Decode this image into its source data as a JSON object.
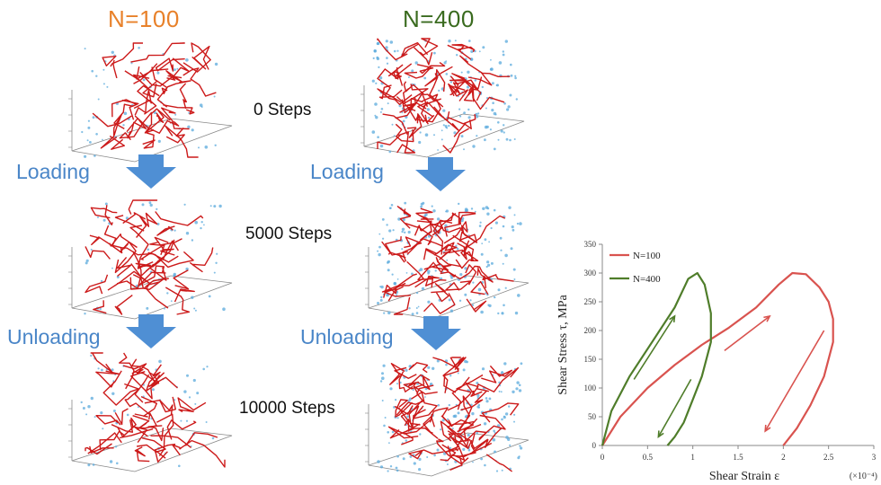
{
  "columns": [
    {
      "title": "N=100",
      "color": "#e8812a"
    },
    {
      "title": "N=400",
      "color": "#3a6b1f"
    }
  ],
  "steps": [
    "0 Steps",
    "5000 Steps",
    "10000 Steps"
  ],
  "phases": {
    "loading": "Loading",
    "unloading": "Unloading"
  },
  "colors": {
    "dislocation": "#cc1a1a",
    "atoms": "#5aa9dc",
    "arrow": "#4f8fd4",
    "label_blue": "#4a86c8"
  },
  "chart_data": {
    "type": "line",
    "xlabel": "Shear Strain ε",
    "ylabel": "Shear Stress τ, MPa",
    "x_multiplier": "(×10⁻⁴)",
    "xlim": [
      0,
      3
    ],
    "ylim": [
      0,
      350
    ],
    "xticks": [
      "0",
      "0.5",
      "1",
      "1.5",
      "2",
      "2.5",
      "3"
    ],
    "yticks": [
      "0",
      "50",
      "100",
      "150",
      "200",
      "250",
      "300",
      "350"
    ],
    "legend_position": "top-left",
    "series": [
      {
        "name": "N=100",
        "color": "#d9534f",
        "x": [
          0,
          0.2,
          0.5,
          0.8,
          1.1,
          1.4,
          1.7,
          1.95,
          2.1,
          2.25,
          2.4,
          2.5,
          2.55,
          2.55,
          2.45,
          2.3,
          2.15,
          2.05,
          2.0
        ],
        "y": [
          0,
          50,
          100,
          140,
          175,
          205,
          240,
          280,
          300,
          298,
          275,
          250,
          220,
          180,
          120,
          70,
          30,
          10,
          0
        ]
      },
      {
        "name": "N=400",
        "color": "#4f7d2a",
        "x": [
          0,
          0.1,
          0.3,
          0.55,
          0.8,
          0.95,
          1.05,
          1.13,
          1.2,
          1.2,
          1.1,
          1.0,
          0.9,
          0.8,
          0.72
        ],
        "y": [
          0,
          60,
          120,
          180,
          240,
          290,
          300,
          280,
          230,
          180,
          120,
          80,
          40,
          15,
          0
        ]
      }
    ]
  }
}
